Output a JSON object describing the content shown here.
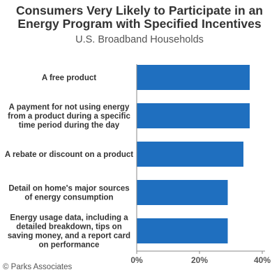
{
  "credit": "© Parks Associates",
  "chart_data": {
    "type": "bar",
    "orientation": "horizontal",
    "title": "Consumers Very Likely to Participate in an Energy Program with Specified Incentives",
    "title_lines": [
      "Consumers Very Likely to Participate in an",
      "Energy Program with Specified Incentives"
    ],
    "subtitle": "U.S. Broadband Households",
    "categories": [
      "A free product",
      "A payment for not using energy from a product during a specific time period during the day",
      "A rebate or discount on a product",
      "Detail on home's major sources of energy consumption",
      "Energy usage data, including a detailed breakdown, tips on saving money, and a report card on performance"
    ],
    "category_lines": [
      [
        "A free product"
      ],
      [
        "A payment for not using energy",
        "from a product during a specific",
        "time period during the day"
      ],
      [
        "A rebate or discount on a product"
      ],
      [
        "Detail on home's major sources",
        "of energy consumption"
      ],
      [
        "Energy usage data, including a",
        "detailed breakdown, tips on",
        "saving money, and a report card",
        "on performance"
      ]
    ],
    "values": [
      36,
      36,
      34,
      29,
      29
    ],
    "unit": "%",
    "xlim": [
      0,
      40
    ],
    "ticks": [
      "0%",
      "20%",
      "40%"
    ],
    "tick_values": [
      0,
      20,
      40
    ],
    "bar_color": "#1f6fbf",
    "axis_color": "#888888",
    "grid": false,
    "legend": "none"
  }
}
